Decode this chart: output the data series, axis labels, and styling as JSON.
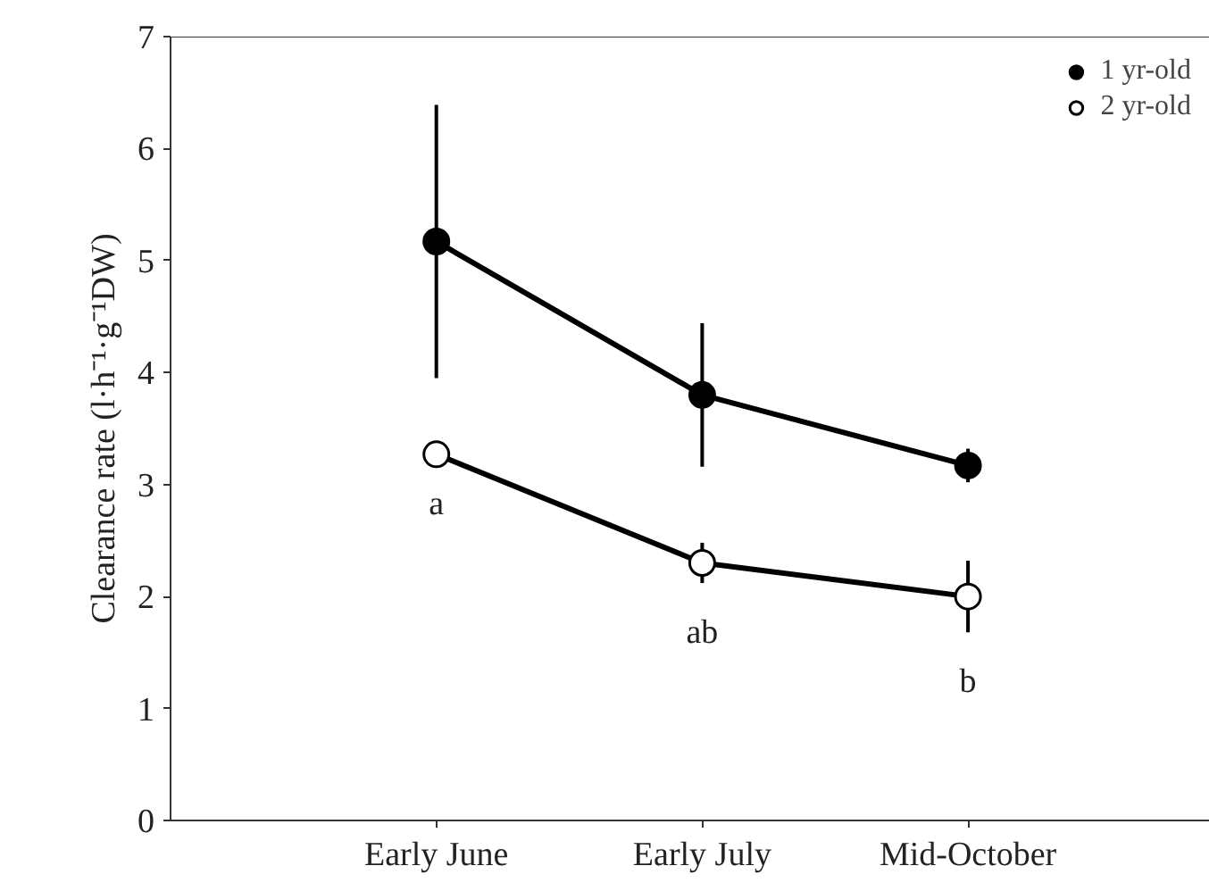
{
  "chart_data": {
    "type": "line",
    "ylabel": "Clearance rate (l·h⁻¹·g⁻¹DW)",
    "categories": [
      "Early June",
      "Early July",
      "Mid-October"
    ],
    "series": [
      {
        "name": "1 yr-old",
        "color": "#000000",
        "values": [
          5.17,
          3.8,
          3.17
        ],
        "errors": [
          1.22,
          0.64,
          0.15
        ]
      },
      {
        "name": "2 yr-old",
        "color": "#000000",
        "values": [
          3.27,
          2.3,
          2.0
        ],
        "errors": [
          null,
          0.18,
          0.32
        ]
      }
    ],
    "annotations": [
      "a",
      "ab",
      "b"
    ],
    "ylim": [
      0,
      7
    ],
    "yticks": [
      0,
      1,
      2,
      3,
      4,
      5,
      6,
      7
    ],
    "grid": false,
    "legend": "top right",
    "marker": "circle",
    "line_style": "solid"
  }
}
